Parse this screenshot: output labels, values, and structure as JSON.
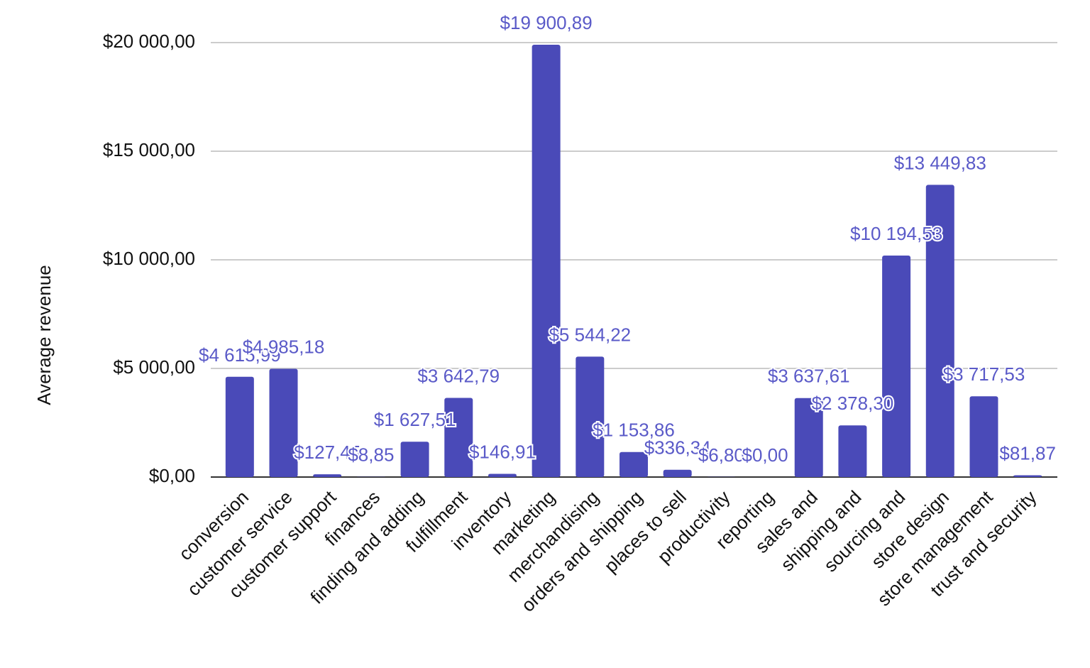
{
  "chart_data": {
    "type": "bar",
    "y_label": "Average revenue",
    "categories": [
      "conversion",
      "customer service",
      "customer support",
      "finances",
      "finding and adding",
      "fulfillment",
      "inventory",
      "marketing",
      "merchandising",
      "orders and shipping",
      "places to sell",
      "productivity",
      "reporting",
      "sales and",
      "shipping and",
      "sourcing and",
      "store design",
      "store management",
      "trust and security"
    ],
    "values": [
      4615.99,
      4985.18,
      127.45,
      8.85,
      1627.51,
      3642.79,
      146.91,
      19900.89,
      5544.22,
      1153.86,
      336.34,
      6.8,
      0,
      3637.61,
      2378.3,
      10194.53,
      13449.83,
      3717.53,
      81.87
    ],
    "value_labels": [
      "$4 615,99",
      "$4 985,18",
      "$127,45",
      "$8,85",
      "$1 627,51",
      "$3 642,79",
      "$146,91",
      "$19 900,89",
      "$5 544,22",
      "$1 153,86",
      "$336,34",
      "$6,80",
      "$0,00",
      "$3 637,61",
      "$2 378,30",
      "$10 194,53",
      "$13 449,83",
      "$3 717,53",
      "$81,87"
    ],
    "color": "#4a4ab8",
    "label_color": "#5a5ac8",
    "ylim": [
      0,
      20000
    ],
    "yticks": [
      {
        "value": 0,
        "label": "$0,00"
      },
      {
        "value": 5000,
        "label": "$5 000,00"
      },
      {
        "value": 10000,
        "label": "$10 000,00"
      },
      {
        "value": 15000,
        "label": "$15 000,00"
      },
      {
        "value": 20000,
        "label": "$20 000,00"
      }
    ],
    "grid": true
  }
}
